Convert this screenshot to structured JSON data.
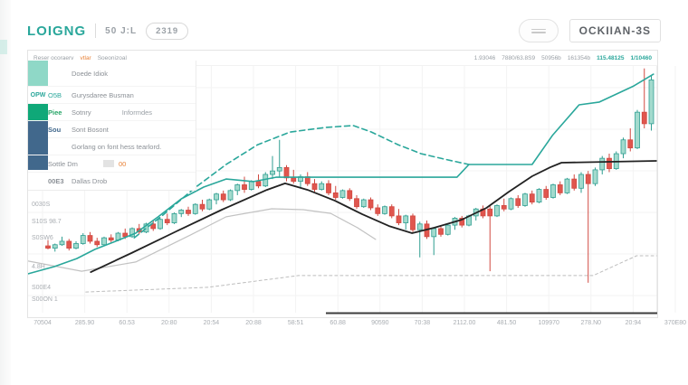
{
  "header": {
    "title": "LOIGNG",
    "timeframe": "50 J:L",
    "badge": "2319",
    "symbol": "OCKIIAN-3S"
  },
  "stats": {
    "left_tokens": [
      "Reser ocoraerv",
      "vtlar",
      "Soeonizoal"
    ],
    "values": [
      "1.93046",
      "7880/63.8S9",
      "50956b",
      "161354b"
    ],
    "values_highlight": [
      "115.48125",
      "1/10460"
    ]
  },
  "legend": {
    "rows": [
      {
        "swatch": "#8fd8c7",
        "label": "Doede Idiok"
      },
      {
        "prefix": "OPW",
        "key": "O5B",
        "label": "Gurysdaree Busman"
      },
      {
        "swatch": "#0fa878",
        "key": "Piee",
        "label": "Sotnry",
        "extra": "Informdes"
      },
      {
        "key": "Sou",
        "label": "Sont Bosont"
      },
      {
        "label": "Gorlang on font hess tearlord."
      },
      {
        "label": "Sottle Dm",
        "value": "00"
      },
      {
        "key": "00E3",
        "label": "Dallas Drob"
      }
    ],
    "blue_swatch": "#41688c"
  },
  "chart_data": {
    "type": "candlestick",
    "title": "",
    "grid": true,
    "ylim": [
      0,
      115
    ],
    "colors": {
      "up_fill": "#a3dacd",
      "up_stroke": "#2f9e91",
      "down_fill": "#e0564e",
      "down_stroke": "#d04840",
      "grid": "#f3f3f3",
      "axis_text": "#a9adb2"
    },
    "xlabels": [
      "70504",
      "285.90",
      "60.53",
      "20:80",
      "20:54",
      "20:88",
      "58:51",
      "60.88",
      "90590",
      "70:38",
      "2112.00",
      "481.50",
      "109970",
      "278.N0",
      "20:94",
      "370E80"
    ],
    "ylabels": [
      {
        "text": "0030S",
        "y": 228
      },
      {
        "text": "S10S 98.7",
        "y": 247
      },
      {
        "text": "S0SW6",
        "y": 265
      },
      {
        "text": "4.8H",
        "y": 297
      },
      {
        "text": "S00E4",
        "y": 320
      },
      {
        "text": "S00ON 1",
        "y": 333
      }
    ],
    "candles": [
      [
        29,
        31.5,
        27.5,
        28
      ],
      [
        28,
        30,
        26.5,
        29.5
      ],
      [
        29.5,
        33,
        29,
        31
      ],
      [
        31,
        32,
        27,
        28
      ],
      [
        28,
        31,
        27.5,
        30
      ],
      [
        30,
        34.5,
        29.5,
        33.5
      ],
      [
        33.5,
        35,
        30,
        31
      ],
      [
        31,
        32.5,
        28.5,
        29.5
      ],
      [
        29.5,
        33,
        29,
        32.5
      ],
      [
        32.5,
        34,
        30.5,
        31.5
      ],
      [
        31.5,
        35,
        31,
        34.5
      ],
      [
        34.5,
        36.5,
        32,
        33
      ],
      [
        33,
        37,
        32.5,
        36.5
      ],
      [
        36.5,
        38.5,
        34,
        35
      ],
      [
        35,
        39,
        34.5,
        38.5
      ],
      [
        38.5,
        40,
        35.5,
        36.5
      ],
      [
        36.5,
        41,
        36,
        40.5
      ],
      [
        40.5,
        43,
        38,
        39
      ],
      [
        39,
        43.5,
        38.5,
        43
      ],
      [
        43,
        45,
        41.5,
        44.5
      ],
      [
        44.5,
        46,
        42,
        43
      ],
      [
        43,
        47.5,
        42.5,
        47
      ],
      [
        47,
        49,
        44,
        45
      ],
      [
        45,
        49.5,
        44.5,
        49
      ],
      [
        49,
        52,
        47,
        51.5
      ],
      [
        51.5,
        53,
        48,
        49
      ],
      [
        49,
        53.5,
        48.5,
        53
      ],
      [
        53,
        56,
        51,
        55.5
      ],
      [
        55.5,
        59,
        52,
        53.5
      ],
      [
        53.5,
        57.5,
        53,
        57
      ],
      [
        57,
        60,
        54,
        55
      ],
      [
        55,
        61,
        54.5,
        60
      ],
      [
        60,
        68,
        58,
        61.5
      ],
      [
        61.5,
        75,
        59,
        63
      ],
      [
        63,
        64,
        57,
        58.5
      ],
      [
        58.5,
        62,
        56,
        57
      ],
      [
        57,
        60,
        54.5,
        59
      ],
      [
        59,
        61,
        55,
        56
      ],
      [
        56,
        58,
        52.5,
        53.5
      ],
      [
        53.5,
        57,
        53,
        56
      ],
      [
        56,
        57.5,
        51,
        52
      ],
      [
        52,
        55,
        49,
        50
      ],
      [
        50,
        53.5,
        49.5,
        53
      ],
      [
        53,
        54,
        48.5,
        49.5
      ],
      [
        49.5,
        51,
        45,
        46
      ],
      [
        46,
        49.5,
        45.5,
        49
      ],
      [
        49,
        50,
        44.5,
        45.5
      ],
      [
        45.5,
        47,
        42,
        43
      ],
      [
        43,
        46.5,
        42.5,
        46
      ],
      [
        46,
        47,
        41,
        42
      ],
      [
        42,
        45,
        38,
        39
      ],
      [
        39,
        42.5,
        36,
        42
      ],
      [
        42,
        43,
        35,
        36
      ],
      [
        36,
        39.5,
        24,
        38.5
      ],
      [
        38.5,
        40,
        32,
        33
      ],
      [
        33,
        37,
        25,
        36.5
      ],
      [
        36.5,
        38,
        33,
        34
      ],
      [
        34,
        38.5,
        33.5,
        38
      ],
      [
        38,
        41.5,
        36,
        41
      ],
      [
        41,
        42,
        37,
        38
      ],
      [
        38,
        42.5,
        37.5,
        42
      ],
      [
        42,
        45.5,
        40,
        45
      ],
      [
        45,
        46.5,
        41,
        42
      ],
      [
        45,
        46.5,
        18,
        42
      ],
      [
        42,
        47,
        41.5,
        46.5
      ],
      [
        46.5,
        49.5,
        44,
        45
      ],
      [
        45,
        50,
        44.5,
        49.5
      ],
      [
        49.5,
        51,
        45.5,
        46.5
      ],
      [
        46.5,
        52,
        46,
        51.5
      ],
      [
        51.5,
        53,
        47,
        48
      ],
      [
        48,
        54,
        47.5,
        53.5
      ],
      [
        53.5,
        55,
        49,
        50
      ],
      [
        50,
        56,
        49.5,
        55.5
      ],
      [
        55.5,
        57,
        51,
        52
      ],
      [
        52,
        58.5,
        51.5,
        58
      ],
      [
        58,
        60,
        53,
        54
      ],
      [
        54,
        61,
        52,
        60
      ],
      [
        60,
        61.5,
        13,
        56
      ],
      [
        56,
        63,
        55,
        62
      ],
      [
        62,
        68,
        60,
        67
      ],
      [
        67,
        69,
        61,
        62.5
      ],
      [
        62.5,
        70,
        62,
        69
      ],
      [
        69,
        76,
        67,
        75
      ],
      [
        75,
        80,
        70,
        71.5
      ],
      [
        71.5,
        88,
        71,
        87
      ],
      [
        87,
        106,
        80,
        82
      ],
      [
        82,
        103,
        79,
        101
      ]
    ],
    "lines": [
      {
        "name": "ma-teal-solid",
        "color": "#2aa79b",
        "width": 1.6,
        "dash": null,
        "points": [
          [
            -2.8,
            16.9
          ],
          [
            0.9,
            20
          ],
          [
            4.1,
            23.5
          ],
          [
            6.7,
            27.5
          ],
          [
            9.3,
            30.6
          ],
          [
            12.5,
            34.5
          ],
          [
            15.7,
            41.6
          ],
          [
            19,
            49.4
          ],
          [
            22.2,
            54.5
          ],
          [
            25.4,
            58
          ],
          [
            29.3,
            56.9
          ],
          [
            32.5,
            58.8
          ],
          [
            58.3,
            58.8
          ],
          [
            60,
            64.3
          ],
          [
            69,
            64.3
          ],
          [
            71.9,
            76.9
          ],
          [
            75.7,
            90.2
          ],
          [
            78.6,
            91.4
          ],
          [
            83.5,
            98.4
          ],
          [
            86.3,
            103.5
          ]
        ]
      },
      {
        "name": "ma-teal-dashed",
        "color": "#2aa79b",
        "width": 1.6,
        "dash": "6 4",
        "points": [
          [
            12.3,
            32.5
          ],
          [
            16.4,
            42.4
          ],
          [
            20.9,
            54.1
          ],
          [
            25.4,
            64.3
          ],
          [
            29.9,
            72.9
          ],
          [
            34.5,
            78.4
          ],
          [
            39.6,
            80.4
          ],
          [
            43.5,
            81.2
          ],
          [
            46.1,
            78.4
          ],
          [
            49.9,
            72.9
          ],
          [
            53.2,
            69
          ],
          [
            56.4,
            66.7
          ],
          [
            60,
            64.3
          ]
        ]
      },
      {
        "name": "trend-black",
        "color": "#222222",
        "width": 1.8,
        "dash": null,
        "points": [
          [
            6.1,
            17.6
          ],
          [
            11.9,
            25.9
          ],
          [
            18.3,
            35.3
          ],
          [
            24.8,
            44.7
          ],
          [
            31.2,
            53.3
          ],
          [
            33.8,
            56.1
          ],
          [
            37,
            53.3
          ],
          [
            40.9,
            48.6
          ],
          [
            44.8,
            42.7
          ],
          [
            48.6,
            37.6
          ],
          [
            51.9,
            34.5
          ],
          [
            55.1,
            36.9
          ],
          [
            59,
            40.4
          ],
          [
            62.5,
            45.5
          ],
          [
            65.7,
            52.5
          ],
          [
            69,
            59.2
          ],
          [
            71.6,
            63.1
          ],
          [
            73.2,
            65.1
          ],
          [
            86.8,
            65.9
          ]
        ]
      },
      {
        "name": "band-gray",
        "color": "#c2c2c2",
        "width": 1.2,
        "dash": null,
        "points": [
          [
            -2.8,
            22.4
          ],
          [
            4.8,
            18
          ],
          [
            12.5,
            22
          ],
          [
            20.3,
            33.7
          ],
          [
            25.4,
            41.6
          ],
          [
            31.9,
            45.1
          ],
          [
            36.4,
            44.7
          ],
          [
            40.3,
            43.1
          ],
          [
            44.1,
            36.9
          ],
          [
            46.7,
            31.8
          ]
        ]
      },
      {
        "name": "baseline-gray-dashed",
        "color": "#bdbdbd",
        "width": 1,
        "dash": "3 3",
        "points": [
          [
            5.4,
            9
          ],
          [
            22.8,
            11
          ],
          [
            35.7,
            16.1
          ],
          [
            77.7,
            16.1
          ],
          [
            83.9,
            24.7
          ],
          [
            86.8,
            24.7
          ]
        ]
      }
    ]
  }
}
